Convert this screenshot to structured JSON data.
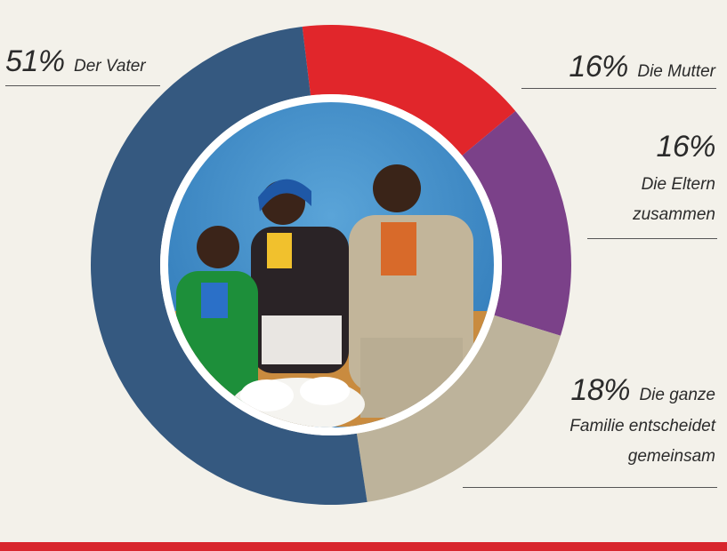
{
  "chart_data": {
    "type": "pie",
    "title": "",
    "slices": [
      {
        "label": "Die Mutter",
        "value": 16,
        "pct_text": "16%",
        "color": "#e1262b"
      },
      {
        "label": "Die Eltern zusammen",
        "value": 16,
        "pct_text": "16%",
        "color": "#7b4189"
      },
      {
        "label": "Die ganze Familie entscheidet gemeinsam",
        "value": 18,
        "pct_text": "18%",
        "color": "#bdb39b"
      },
      {
        "label": "Der Vater",
        "value": 51,
        "pct_text": "51%",
        "color": "#355980"
      }
    ],
    "center_image": "family-photo"
  },
  "labels": {
    "vater": {
      "pct": "51%",
      "line1": "Der Vater"
    },
    "mutter": {
      "pct": "16%",
      "line1": "Die Mutter"
    },
    "eltern": {
      "pct": "16%",
      "line1": "Die Eltern",
      "line2": "zusammen"
    },
    "familie": {
      "pct": "18%",
      "line1": "Die ganze",
      "line2": "Familie entscheidet",
      "line3": "gemeinsam"
    }
  },
  "colors": {
    "background": "#f3f1ea",
    "bottom_bar": "#d8262d"
  }
}
